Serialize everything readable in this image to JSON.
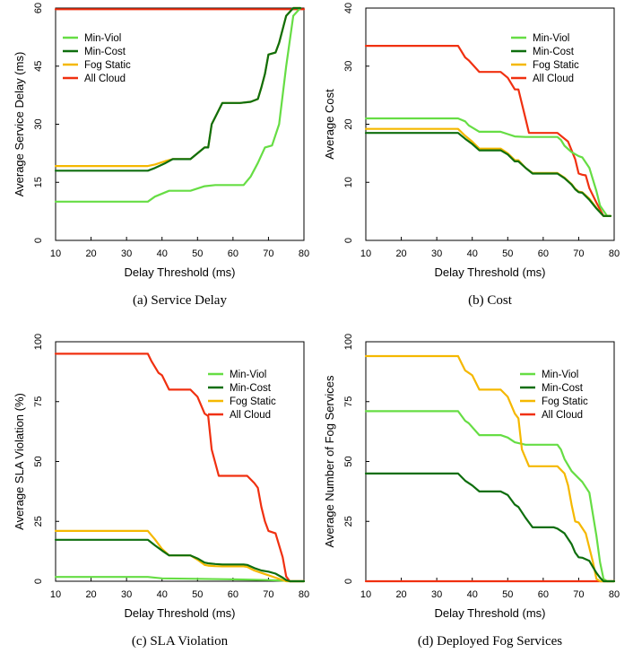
{
  "chart_data": [
    {
      "type": "line",
      "caption": "(a) Service Delay",
      "xlabel": "Delay Threshold (ms)",
      "ylabel": "Average Service Delay (ms)",
      "xlim": [
        10,
        80
      ],
      "ylim": [
        0,
        60
      ],
      "xticks": [
        10,
        20,
        30,
        40,
        50,
        60,
        70,
        80
      ],
      "yticks": [
        0,
        15,
        30,
        45,
        60
      ],
      "legend_position": "top-left",
      "series": [
        {
          "name": "Min-Viol",
          "color": "#66dd44",
          "x": [
            10,
            36,
            38,
            42,
            48,
            52,
            55,
            63,
            65,
            67,
            69,
            71,
            73,
            75,
            77,
            79
          ],
          "y": [
            10,
            10,
            11.3,
            12.8,
            12.8,
            14,
            14.3,
            14.3,
            16.5,
            20,
            24,
            24.5,
            30,
            45,
            58,
            60
          ]
        },
        {
          "name": "Min-Cost",
          "color": "#0e6e0e",
          "x": [
            10,
            36,
            38,
            41,
            43,
            48,
            50,
            52,
            53,
            54,
            57,
            62,
            65,
            67,
            68,
            69,
            70,
            72,
            73,
            75,
            77,
            79
          ],
          "y": [
            18,
            18,
            18.7,
            20,
            21,
            21,
            22.5,
            24,
            24,
            30,
            35.5,
            35.5,
            35.8,
            36.5,
            39.5,
            43,
            48,
            48.5,
            51,
            58,
            60,
            60
          ]
        },
        {
          "name": "Fog Static",
          "color": "#f5b800",
          "x": [
            10,
            36,
            38,
            41,
            43,
            48,
            50,
            52,
            53,
            54,
            57,
            62,
            65,
            67,
            68,
            69,
            70,
            72,
            73,
            75,
            77,
            79
          ],
          "y": [
            19.2,
            19.2,
            19.6,
            20.5,
            21,
            21,
            22.5,
            24,
            24,
            30,
            35.5,
            35.5,
            35.8,
            36.5,
            39.5,
            43,
            48,
            48.5,
            51,
            58,
            60,
            60
          ]
        },
        {
          "name": "All Cloud",
          "color": "#f03010",
          "x": [
            10,
            80
          ],
          "y": [
            59.7,
            59.7
          ]
        }
      ]
    },
    {
      "type": "line",
      "caption": "(b) Cost",
      "xlabel": "Delay Threshold (ms)",
      "ylabel": "Average Cost",
      "xlim": [
        10,
        80
      ],
      "ylim": [
        0,
        40
      ],
      "xticks": [
        10,
        20,
        30,
        40,
        50,
        60,
        70,
        80
      ],
      "yticks": [
        0,
        10,
        20,
        30,
        40
      ],
      "legend_position": "top-right",
      "series": [
        {
          "name": "Min-Viol",
          "color": "#66dd44",
          "x": [
            10,
            36,
            38,
            39,
            42,
            48,
            50,
            52,
            55,
            64,
            65,
            66,
            68,
            70,
            71,
            73,
            75,
            76,
            78,
            79
          ],
          "y": [
            21,
            21,
            20.5,
            19.8,
            18.7,
            18.7,
            18.3,
            17.9,
            17.8,
            17.8,
            17.3,
            16.3,
            15.2,
            14.5,
            14.3,
            12.5,
            8.5,
            6,
            4.2,
            4.2
          ]
        },
        {
          "name": "Min-Cost",
          "color": "#0e6e0e",
          "x": [
            10,
            36,
            38,
            40,
            42,
            48,
            50,
            52,
            53,
            55,
            57,
            63,
            64,
            66,
            68,
            69,
            70,
            71,
            73,
            75,
            77,
            79
          ],
          "y": [
            18.5,
            18.5,
            17.5,
            16.6,
            15.5,
            15.5,
            14.8,
            13.6,
            13.6,
            12.5,
            11.5,
            11.5,
            11.5,
            10.7,
            9.6,
            8.8,
            8.3,
            8.2,
            7,
            5.5,
            4.2,
            4.2
          ]
        },
        {
          "name": "Fog Static",
          "color": "#f5b800",
          "x": [
            10,
            36,
            38,
            40,
            42,
            48,
            50,
            52,
            53,
            55,
            57,
            63,
            64,
            66,
            68,
            69,
            70,
            71,
            73,
            75,
            77,
            79
          ],
          "y": [
            19.2,
            19.2,
            18,
            17,
            15.8,
            15.8,
            15,
            13.8,
            13.8,
            12.5,
            11.6,
            11.6,
            11.6,
            10.8,
            9.7,
            8.9,
            8.4,
            8.3,
            7.2,
            5.6,
            4.2,
            4.2
          ]
        },
        {
          "name": "All Cloud",
          "color": "#f03010",
          "x": [
            10,
            36,
            38,
            39,
            42,
            48,
            50,
            52,
            53,
            55,
            56,
            63,
            64,
            67,
            69,
            70,
            71,
            72,
            73,
            75,
            77,
            79
          ],
          "y": [
            33.5,
            33.5,
            31.5,
            31,
            29,
            29,
            28,
            26,
            26,
            21,
            18.5,
            18.5,
            18.5,
            17,
            14,
            11.5,
            11.3,
            11.2,
            9,
            6.5,
            4.2,
            4.2
          ]
        }
      ]
    },
    {
      "type": "line",
      "caption": "(c) SLA Violation",
      "xlabel": "Delay Threshold (ms)",
      "ylabel": "Average SLA Violation (%)",
      "xlim": [
        10,
        80
      ],
      "ylim": [
        0,
        100
      ],
      "xticks": [
        10,
        20,
        30,
        40,
        50,
        60,
        70,
        80
      ],
      "yticks": [
        0,
        25,
        50,
        75,
        100
      ],
      "legend_position": "top-right",
      "series": [
        {
          "name": "Min-Viol",
          "color": "#66dd44",
          "x": [
            10,
            36,
            40,
            50,
            60,
            70,
            75,
            76,
            80
          ],
          "y": [
            1.8,
            1.8,
            1.2,
            1,
            0.8,
            0.5,
            0.2,
            0,
            0
          ]
        },
        {
          "name": "Min-Cost",
          "color": "#0e6e0e",
          "x": [
            10,
            36,
            38,
            40,
            42,
            48,
            50,
            52,
            53,
            55,
            57,
            63,
            64,
            66,
            68,
            70,
            72,
            74,
            75,
            76,
            80
          ],
          "y": [
            17.3,
            17.3,
            15,
            12.8,
            10.8,
            10.8,
            9.5,
            7.8,
            7.5,
            7.2,
            7,
            7,
            6.8,
            5.5,
            4.5,
            4,
            3.2,
            1.5,
            0.5,
            0,
            0
          ]
        },
        {
          "name": "Fog Static",
          "color": "#f5b800",
          "x": [
            10,
            36,
            38,
            40,
            42,
            48,
            50,
            52,
            53,
            55,
            57,
            63,
            64,
            66,
            68,
            70,
            72,
            74,
            75,
            76,
            80
          ],
          "y": [
            21,
            21,
            17.5,
            13.5,
            10.8,
            10.8,
            9,
            6.8,
            6.5,
            6.3,
            6.2,
            6.2,
            6,
            4.5,
            3.5,
            2.5,
            1.5,
            0.5,
            0,
            0,
            0
          ]
        },
        {
          "name": "All Cloud",
          "color": "#f03010",
          "x": [
            10,
            36,
            37,
            39,
            40,
            42,
            48,
            50,
            52,
            53,
            54,
            56,
            63,
            64,
            66,
            67,
            68,
            69,
            70,
            72,
            74,
            75,
            76,
            80
          ],
          "y": [
            95,
            95,
            92,
            87,
            86,
            80,
            80,
            77,
            70,
            69,
            55,
            44,
            44,
            44,
            41,
            39,
            31,
            25,
            21,
            20,
            10,
            2,
            0,
            0
          ]
        }
      ]
    },
    {
      "type": "line",
      "caption": "(d) Deployed Fog Services",
      "xlabel": "Delay Threshold (ms)",
      "ylabel": "Average Number of Fog Services",
      "xlim": [
        10,
        80
      ],
      "ylim": [
        0,
        100
      ],
      "xticks": [
        10,
        20,
        30,
        40,
        50,
        60,
        70,
        80
      ],
      "yticks": [
        0,
        25,
        50,
        75,
        100
      ],
      "legend_position": "top-right",
      "series": [
        {
          "name": "Min-Viol",
          "color": "#66dd44",
          "x": [
            10,
            36,
            38,
            39,
            42,
            48,
            50,
            52,
            55,
            64,
            65,
            66,
            68,
            70,
            71,
            73,
            75,
            76,
            77,
            78,
            80
          ],
          "y": [
            71,
            71,
            67,
            66,
            61,
            61,
            60,
            58,
            57,
            57,
            55,
            51,
            46,
            43,
            41.5,
            37,
            19,
            8,
            1,
            0,
            0
          ]
        },
        {
          "name": "Min-Cost",
          "color": "#0e6e0e",
          "x": [
            10,
            36,
            38,
            40,
            42,
            48,
            50,
            52,
            53,
            55,
            57,
            63,
            64,
            66,
            68,
            69,
            70,
            71,
            73,
            75,
            76,
            77,
            80
          ],
          "y": [
            45,
            45,
            42,
            40,
            37.5,
            37.5,
            36,
            32,
            31,
            26.5,
            22.5,
            22.5,
            22,
            20,
            15.5,
            12,
            10,
            9.8,
            8.5,
            3.5,
            1.5,
            0,
            0
          ]
        },
        {
          "name": "Fog Static",
          "color": "#f5b800",
          "x": [
            10,
            36,
            37,
            38,
            39,
            40,
            42,
            48,
            50,
            52,
            53,
            54,
            56,
            63,
            64,
            66,
            67,
            68,
            69,
            70,
            72,
            74,
            75,
            76,
            80
          ],
          "y": [
            94,
            94,
            91,
            88,
            87,
            86,
            80,
            80,
            77,
            70,
            68,
            55,
            48,
            48,
            48,
            45,
            40,
            32,
            25,
            24.5,
            20,
            8,
            1,
            0,
            0
          ]
        },
        {
          "name": "All Cloud",
          "color": "#f03010",
          "x": [
            10,
            80
          ],
          "y": [
            0,
            0
          ]
        }
      ]
    }
  ]
}
